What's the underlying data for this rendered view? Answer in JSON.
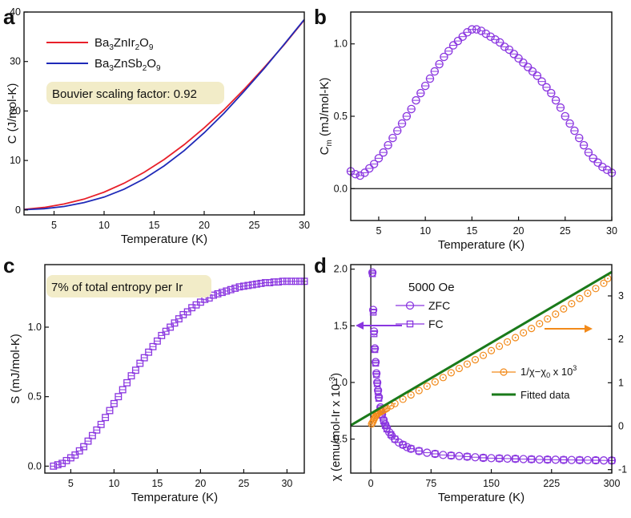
{
  "colors": {
    "red": "#e8202a",
    "blue": "#1f2ab8",
    "purple": "#8a36e0",
    "orange": "#f28a1a",
    "green": "#1a7a1a",
    "annotation_bg": "#f2ecc8"
  },
  "panels": {
    "a": {
      "label": "a",
      "annotation": "Bouvier scaling factor: 0.92",
      "legend": [
        {
          "base": "Ba",
          "s1": "3",
          "mid": "ZnIr",
          "s2": "2",
          "tail": "O",
          "s3": "9"
        },
        {
          "base": "Ba",
          "s1": "3",
          "mid": "ZnSb",
          "s2": "2",
          "tail": "O",
          "s3": "9"
        }
      ]
    },
    "b": {
      "label": "b"
    },
    "c": {
      "label": "c",
      "annotation": "7% of total entropy per Ir"
    },
    "d": {
      "label": "d",
      "field": "5000 Oe",
      "legend_zfc": "ZFC",
      "legend_fc": "FC",
      "legend_inv_main": "1/χ−χ",
      "legend_inv_sub": "0",
      "legend_inv_tail": " x 10",
      "legend_inv_sup": "3",
      "legend_fit": "Fitted data",
      "ylabel_main": "χ (emu/mol-Ir x 10",
      "ylabel_sup": "-3",
      "ylabel_tail": ")"
    }
  },
  "chart_data": [
    {
      "id": "a",
      "type": "line",
      "xlabel": "Temperature (K)",
      "ylabel": "C (J/mol-K)",
      "xlim": [
        2,
        30
      ],
      "ylim": [
        -1,
        40
      ],
      "xticks": [
        5,
        10,
        15,
        20,
        25,
        30
      ],
      "yticks": [
        0,
        10,
        20,
        30,
        40
      ],
      "series": [
        {
          "name": "Ba3ZnIr2O9",
          "color": "red",
          "x": [
            2,
            4,
            6,
            8,
            10,
            12,
            14,
            16,
            18,
            20,
            22,
            24,
            26,
            28,
            30
          ],
          "y": [
            0.1,
            0.5,
            1.2,
            2.2,
            3.6,
            5.4,
            7.6,
            10.2,
            13.2,
            16.6,
            20.3,
            24.4,
            28.8,
            33.4,
            38.4
          ]
        },
        {
          "name": "Ba3ZnSb2O9",
          "color": "blue",
          "x": [
            2,
            4,
            6,
            8,
            10,
            12,
            14,
            16,
            18,
            20,
            22,
            24,
            26,
            28,
            30
          ],
          "y": [
            0.05,
            0.25,
            0.7,
            1.5,
            2.6,
            4.2,
            6.3,
            8.9,
            12.0,
            15.6,
            19.6,
            24.0,
            28.6,
            33.5,
            38.5
          ]
        }
      ]
    },
    {
      "id": "b",
      "type": "scatter",
      "xlabel": "Temperature (K)",
      "ylabel": "C",
      "ylabel_sub": "m",
      "ylabel_tail": " (mJ/mol-K)",
      "xlim": [
        2,
        30
      ],
      "ylim": [
        -0.22,
        1.22
      ],
      "xticks": [
        5,
        10,
        15,
        20,
        25,
        30
      ],
      "yticks": [
        0.0,
        0.5,
        1.0
      ],
      "ytick_labels": [
        "0.0",
        "0.5",
        "1.0"
      ],
      "hline": 0,
      "series": [
        {
          "name": "Cm",
          "color": "purple",
          "marker": "circle",
          "x": [
            2.0,
            2.5,
            3.0,
            3.5,
            4.0,
            4.5,
            5.0,
            5.5,
            6.0,
            6.5,
            7.0,
            7.5,
            8.0,
            8.5,
            9.0,
            9.5,
            10.0,
            10.5,
            11.0,
            11.5,
            12.0,
            12.5,
            13.0,
            13.5,
            14.0,
            14.5,
            15.0,
            15.5,
            16.0,
            16.5,
            17.0,
            17.5,
            18.0,
            18.5,
            19.0,
            19.5,
            20.0,
            20.5,
            21.0,
            21.5,
            22.0,
            22.5,
            23.0,
            23.5,
            24.0,
            24.5,
            25.0,
            25.5,
            26.0,
            26.5,
            27.0,
            27.5,
            28.0,
            28.5,
            29.0,
            29.5,
            30.0
          ],
          "y": [
            0.12,
            0.1,
            0.09,
            0.11,
            0.14,
            0.17,
            0.21,
            0.25,
            0.3,
            0.35,
            0.4,
            0.45,
            0.5,
            0.55,
            0.61,
            0.66,
            0.71,
            0.76,
            0.81,
            0.86,
            0.91,
            0.95,
            0.99,
            1.02,
            1.05,
            1.08,
            1.1,
            1.1,
            1.09,
            1.07,
            1.05,
            1.03,
            1.01,
            0.98,
            0.96,
            0.93,
            0.9,
            0.87,
            0.84,
            0.81,
            0.78,
            0.74,
            0.7,
            0.66,
            0.61,
            0.56,
            0.5,
            0.45,
            0.4,
            0.35,
            0.3,
            0.25,
            0.21,
            0.18,
            0.15,
            0.13,
            0.11
          ]
        }
      ]
    },
    {
      "id": "c",
      "type": "scatter",
      "xlabel": "Temperature (K)",
      "ylabel": "S (mJ/mol-K)",
      "xlim": [
        2,
        32
      ],
      "ylim": [
        -0.05,
        1.45
      ],
      "xticks": [
        5,
        10,
        15,
        20,
        25,
        30
      ],
      "yticks": [
        0.0,
        0.5,
        1.0
      ],
      "ytick_labels": [
        "0.0",
        "0.5",
        "1.0"
      ],
      "series": [
        {
          "name": "S",
          "color": "purple",
          "marker": "square",
          "x": [
            3.0,
            3.5,
            4.0,
            4.5,
            5.0,
            5.5,
            6.0,
            6.5,
            7.0,
            7.5,
            8.0,
            8.5,
            9.0,
            9.5,
            10.0,
            10.5,
            11.0,
            11.5,
            12.0,
            12.5,
            13.0,
            13.5,
            14.0,
            14.5,
            15.0,
            15.5,
            16.0,
            16.5,
            17.0,
            17.5,
            18.0,
            18.5,
            19.0,
            19.5,
            20.0,
            20.5,
            21.0,
            21.5,
            22.0,
            22.5,
            23.0,
            23.5,
            24.0,
            24.5,
            25.0,
            25.5,
            26.0,
            26.5,
            27.0,
            27.5,
            28.0,
            28.5,
            29.0,
            29.5,
            30.0,
            30.5,
            31.0,
            31.5,
            32.0
          ],
          "y": [
            0.0,
            0.01,
            0.02,
            0.04,
            0.06,
            0.08,
            0.11,
            0.14,
            0.18,
            0.22,
            0.26,
            0.3,
            0.35,
            0.4,
            0.45,
            0.5,
            0.55,
            0.6,
            0.65,
            0.69,
            0.74,
            0.78,
            0.82,
            0.86,
            0.9,
            0.94,
            0.97,
            1.0,
            1.03,
            1.06,
            1.09,
            1.11,
            1.14,
            1.16,
            1.18,
            1.2,
            1.21,
            1.23,
            1.24,
            1.25,
            1.26,
            1.27,
            1.28,
            1.29,
            1.295,
            1.3,
            1.305,
            1.31,
            1.315,
            1.32,
            1.32,
            1.325,
            1.325,
            1.33,
            1.33,
            1.33,
            1.33,
            1.33,
            1.33
          ]
        }
      ]
    },
    {
      "id": "d",
      "type": "scatter",
      "xlabel": "Temperature (K)",
      "ylabel": "χ (emu/mol-Ir x 10^-3)",
      "ylabel_right": "1/χ−χ0 x 10^3",
      "xlim": [
        -25,
        300
      ],
      "ylim": [
        0.2,
        2.04
      ],
      "ylim_right": [
        -1.08,
        3.72
      ],
      "xticks": [
        0,
        75,
        150,
        225,
        300
      ],
      "yticks": [
        0.5,
        1.0,
        1.5,
        2.0
      ],
      "ytick_labels": [
        "0.5",
        "1.0",
        "1.5",
        "2.0"
      ],
      "yticks_right": [
        -1,
        0,
        1,
        2,
        3
      ],
      "hline_right": 0,
      "vline_x": 0,
      "series": [
        {
          "name": "ZFC",
          "color": "purple",
          "marker": "circle",
          "axis": "left",
          "x": [
            2,
            3,
            4,
            5,
            6,
            7,
            8,
            9,
            10,
            12,
            14,
            16,
            18,
            20,
            23,
            26,
            30,
            35,
            40,
            45,
            50,
            60,
            70,
            80,
            90,
            100,
            110,
            120,
            130,
            140,
            150,
            160,
            170,
            180,
            190,
            200,
            210,
            220,
            230,
            240,
            250,
            260,
            270,
            280,
            290,
            300
          ],
          "y": [
            1.97,
            1.64,
            1.45,
            1.3,
            1.18,
            1.08,
            1.0,
            0.93,
            0.87,
            0.78,
            0.72,
            0.67,
            0.63,
            0.6,
            0.56,
            0.53,
            0.5,
            0.47,
            0.45,
            0.43,
            0.415,
            0.395,
            0.38,
            0.37,
            0.36,
            0.355,
            0.35,
            0.345,
            0.34,
            0.335,
            0.332,
            0.33,
            0.328,
            0.326,
            0.324,
            0.322,
            0.32,
            0.319,
            0.318,
            0.317,
            0.316,
            0.315,
            0.314,
            0.313,
            0.312,
            0.311
          ]
        },
        {
          "name": "FC",
          "color": "purple",
          "marker": "square",
          "axis": "left",
          "x": [
            2,
            3,
            4,
            5,
            6,
            7,
            8,
            9,
            10,
            12,
            14,
            16,
            18,
            20,
            25,
            30,
            40,
            50,
            60,
            80,
            100,
            120,
            140,
            160,
            180,
            200,
            220,
            240,
            260,
            280,
            300
          ],
          "y": [
            1.96,
            1.62,
            1.43,
            1.29,
            1.17,
            1.07,
            0.99,
            0.92,
            0.86,
            0.77,
            0.71,
            0.66,
            0.62,
            0.59,
            0.54,
            0.5,
            0.45,
            0.415,
            0.395,
            0.37,
            0.355,
            0.345,
            0.335,
            0.33,
            0.326,
            0.322,
            0.319,
            0.317,
            0.315,
            0.313,
            0.311
          ]
        },
        {
          "name": "1/χ−χ0 x 10^3",
          "color": "orange",
          "marker": "dotted-circle",
          "axis": "right",
          "x": [
            1,
            2,
            3,
            4,
            5,
            6,
            7,
            8,
            9,
            10,
            12,
            14,
            16,
            18,
            20,
            25,
            30,
            40,
            50,
            60,
            70,
            80,
            90,
            100,
            110,
            120,
            130,
            140,
            150,
            160,
            170,
            180,
            190,
            200,
            210,
            220,
            230,
            240,
            250,
            260,
            270,
            280,
            290,
            295
          ],
          "y": [
            0.05,
            0.08,
            0.12,
            0.16,
            0.2,
            0.23,
            0.26,
            0.28,
            0.3,
            0.31,
            0.33,
            0.35,
            0.37,
            0.39,
            0.41,
            0.47,
            0.52,
            0.62,
            0.72,
            0.82,
            0.92,
            1.02,
            1.12,
            1.23,
            1.33,
            1.43,
            1.53,
            1.63,
            1.74,
            1.84,
            1.94,
            2.04,
            2.15,
            2.25,
            2.36,
            2.47,
            2.58,
            2.7,
            2.82,
            2.94,
            3.06,
            3.17,
            3.29,
            3.4
          ]
        },
        {
          "name": "Fitted data",
          "color": "green",
          "marker": "line",
          "axis": "right",
          "x": [
            -25,
            300
          ],
          "y": [
            0.02,
            3.55
          ]
        }
      ]
    }
  ]
}
